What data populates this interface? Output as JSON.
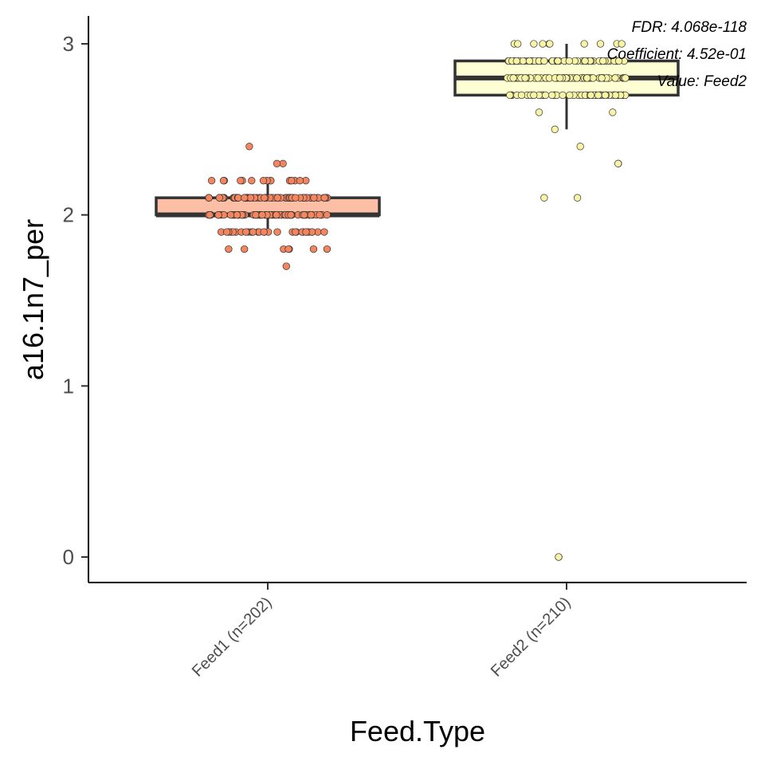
{
  "chart_data": {
    "type": "box",
    "xlabel": "Feed.Type",
    "ylabel": "a16.1n7_per",
    "ylim": [
      -0.15,
      3.15
    ],
    "yticks": [
      0,
      1,
      2,
      3
    ],
    "grid": false,
    "legend": "none",
    "annotations": [
      "FDR: 4.068e-118",
      "Coefficient: 4.52e-01",
      "Value: Feed2"
    ],
    "groups": [
      {
        "category": "Feed1 (n=202)",
        "fill": "#fcbfa6",
        "point_color": "#f4865f",
        "box": {
          "min": 1.9,
          "q1": 2.0,
          "median": 2.0,
          "q3": 2.1,
          "max": 2.2
        },
        "points": [
          {
            "y": 1.7,
            "n": 1
          },
          {
            "y": 1.8,
            "n": 7
          },
          {
            "y": 1.9,
            "n": 30
          },
          {
            "y": 2.0,
            "n": 70
          },
          {
            "y": 2.1,
            "n": 75
          },
          {
            "y": 2.2,
            "n": 16
          },
          {
            "y": 2.3,
            "n": 2
          },
          {
            "y": 2.4,
            "n": 1
          }
        ]
      },
      {
        "category": "Feed2 (n=210)",
        "fill": "#ffffd4",
        "point_color": "#f8f3a5",
        "box": {
          "min": 2.5,
          "q1": 2.7,
          "median": 2.8,
          "q3": 2.9,
          "max": 3.0
        },
        "points": [
          {
            "y": 0.0,
            "n": 2
          },
          {
            "y": 2.1,
            "n": 2
          },
          {
            "y": 2.3,
            "n": 2
          },
          {
            "y": 2.4,
            "n": 1
          },
          {
            "y": 2.5,
            "n": 1
          },
          {
            "y": 2.6,
            "n": 2
          },
          {
            "y": 2.7,
            "n": 50
          },
          {
            "y": 2.8,
            "n": 80
          },
          {
            "y": 2.9,
            "n": 60
          },
          {
            "y": 3.0,
            "n": 10
          }
        ]
      }
    ]
  }
}
